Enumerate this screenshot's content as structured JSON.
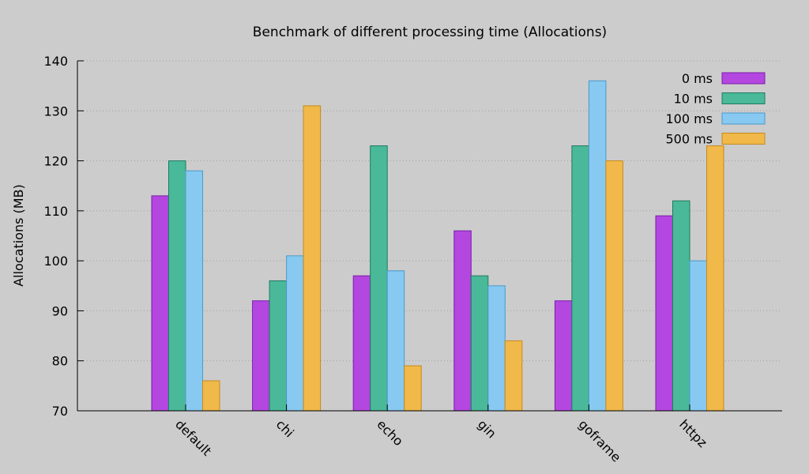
{
  "chart_data": {
    "type": "bar",
    "title": "Benchmark of different processing time (Allocations)",
    "xlabel": "",
    "ylabel": "Allocations (MB)",
    "ylim": [
      70,
      140
    ],
    "yticks": [
      70,
      80,
      90,
      100,
      110,
      120,
      130,
      140
    ],
    "grid": true,
    "legend_position": "top-right",
    "categories": [
      "default",
      "chi",
      "echo",
      "gin",
      "goframe",
      "httpz"
    ],
    "series": [
      {
        "name": "0 ms",
        "color": "#b347e0",
        "stroke": "#7a1fa8",
        "values": [
          113,
          92,
          97,
          106,
          92,
          109
        ]
      },
      {
        "name": "10 ms",
        "color": "#4ab999",
        "stroke": "#1f7a5e",
        "values": [
          120,
          96,
          123,
          97,
          123,
          112
        ]
      },
      {
        "name": "100 ms",
        "color": "#87c9f0",
        "stroke": "#4a9acb",
        "values": [
          118,
          101,
          98,
          95,
          136,
          100
        ]
      },
      {
        "name": "500 ms",
        "color": "#f0b94a",
        "stroke": "#c78a1a",
        "values": [
          76,
          131,
          79,
          84,
          120,
          123
        ]
      }
    ]
  }
}
